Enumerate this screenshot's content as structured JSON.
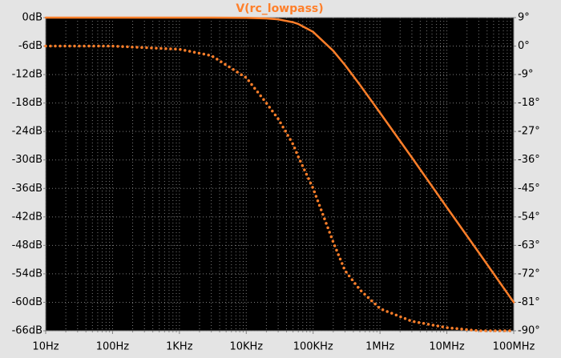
{
  "chart_data": {
    "type": "line",
    "title": "V(rc_lowpass)",
    "x": [
      10,
      100,
      1000,
      3000,
      10000,
      20000,
      30000,
      50000,
      60000,
      100000,
      200000,
      300000,
      500000,
      1000000,
      3000000,
      10000000,
      30000000,
      100000000
    ],
    "series": [
      {
        "color": "#ff7f2a",
        "style": "solid",
        "axis": "y",
        "values": [
          0,
          0,
          0,
          0,
          -0.04,
          -0.17,
          -0.37,
          -0.97,
          -1.34,
          -3.01,
          -6.99,
          -10,
          -14.15,
          -20.04,
          -29.5,
          -40,
          -49.5,
          -60
        ]
      },
      {
        "color": "#ff7f2a",
        "style": "dotted",
        "axis": "y2",
        "values": [
          0,
          0,
          -1,
          -3,
          -10,
          -18,
          -23,
          -31,
          -35,
          -45,
          -62,
          -71,
          -77,
          -83,
          -87,
          -89,
          -90,
          -90
        ]
      }
    ],
    "xscale": "log",
    "xlim": [
      10,
      100000000
    ],
    "xticks": [
      {
        "value": 10,
        "label": "10Hz"
      },
      {
        "value": 100,
        "label": "100Hz"
      },
      {
        "value": 1000,
        "label": "1KHz"
      },
      {
        "value": 10000,
        "label": "10KHz"
      },
      {
        "value": 100000,
        "label": "100KHz"
      },
      {
        "value": 1000000,
        "label": "1MHz"
      },
      {
        "value": 10000000,
        "label": "10MHz"
      },
      {
        "value": 100000000,
        "label": "100MHz"
      }
    ],
    "ylim": [
      -66,
      0
    ],
    "yticks": [
      {
        "value": 0,
        "label": "0dB"
      },
      {
        "value": -6,
        "label": "-6dB"
      },
      {
        "value": -12,
        "label": "-12dB"
      },
      {
        "value": -18,
        "label": "-18dB"
      },
      {
        "value": -24,
        "label": "-24dB"
      },
      {
        "value": -30,
        "label": "-30dB"
      },
      {
        "value": -36,
        "label": "-36dB"
      },
      {
        "value": -42,
        "label": "-42dB"
      },
      {
        "value": -48,
        "label": "-48dB"
      },
      {
        "value": -54,
        "label": "-54dB"
      },
      {
        "value": -60,
        "label": "-60dB"
      },
      {
        "value": -66,
        "label": "-66dB"
      }
    ],
    "y2lim": [
      -90,
      9
    ],
    "y2ticks": [
      {
        "value": 9,
        "label": "9°"
      },
      {
        "value": 0,
        "label": "0°"
      },
      {
        "value": -9,
        "label": "-9°"
      },
      {
        "value": -18,
        "label": "-18°"
      },
      {
        "value": -27,
        "label": "-27°"
      },
      {
        "value": -36,
        "label": "-36°"
      },
      {
        "value": -45,
        "label": "-45°"
      },
      {
        "value": -54,
        "label": "-54°"
      },
      {
        "value": -63,
        "label": "-63°"
      },
      {
        "value": -72,
        "label": "-72°"
      },
      {
        "value": -81,
        "label": "-81°"
      },
      {
        "value": -90,
        "label": "-90°"
      }
    ],
    "grid": true
  }
}
